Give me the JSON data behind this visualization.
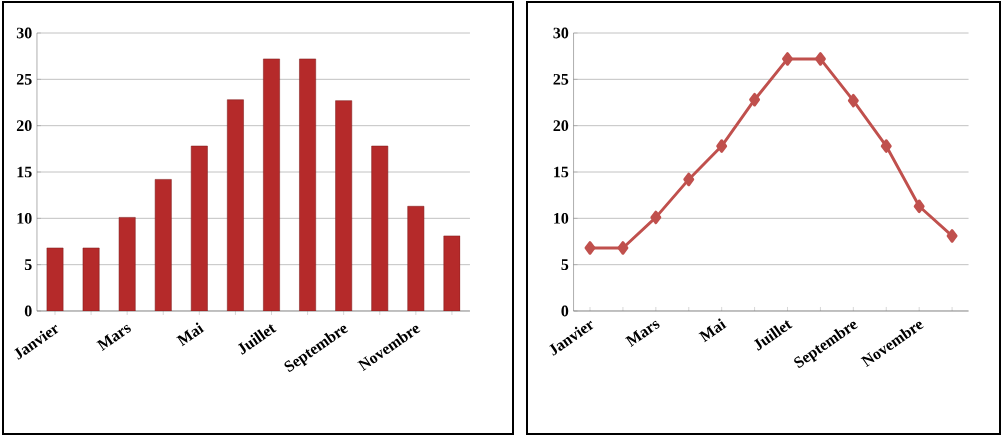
{
  "chart_data": [
    {
      "type": "bar",
      "categories": [
        "Janvier",
        null,
        "Mars",
        null,
        "Mai",
        null,
        "Juillet",
        null,
        "Septembre",
        null,
        "Novembre",
        null
      ],
      "values": [
        6.8,
        6.8,
        10.1,
        14.2,
        17.8,
        22.8,
        27.2,
        27.2,
        22.7,
        17.8,
        11.3,
        8.1
      ],
      "color": "#b52a2a",
      "ylim": [
        0,
        30
      ],
      "yticks": [
        0,
        5,
        10,
        15,
        20,
        25,
        30
      ],
      "grid": "y"
    },
    {
      "type": "line",
      "categories": [
        "Janvier",
        null,
        "Mars",
        null,
        "Mai",
        null,
        "Juillet",
        null,
        "Septembre",
        null,
        "Novembre",
        null
      ],
      "values": [
        6.8,
        6.8,
        10.1,
        14.2,
        17.8,
        22.8,
        27.2,
        27.2,
        22.7,
        17.8,
        11.3,
        8.1
      ],
      "color": "#c0504d",
      "ylim": [
        0,
        30
      ],
      "yticks": [
        0,
        5,
        10,
        15,
        20,
        25,
        30
      ],
      "grid": "y",
      "marker": "diamond",
      "line_style": "solid"
    }
  ]
}
